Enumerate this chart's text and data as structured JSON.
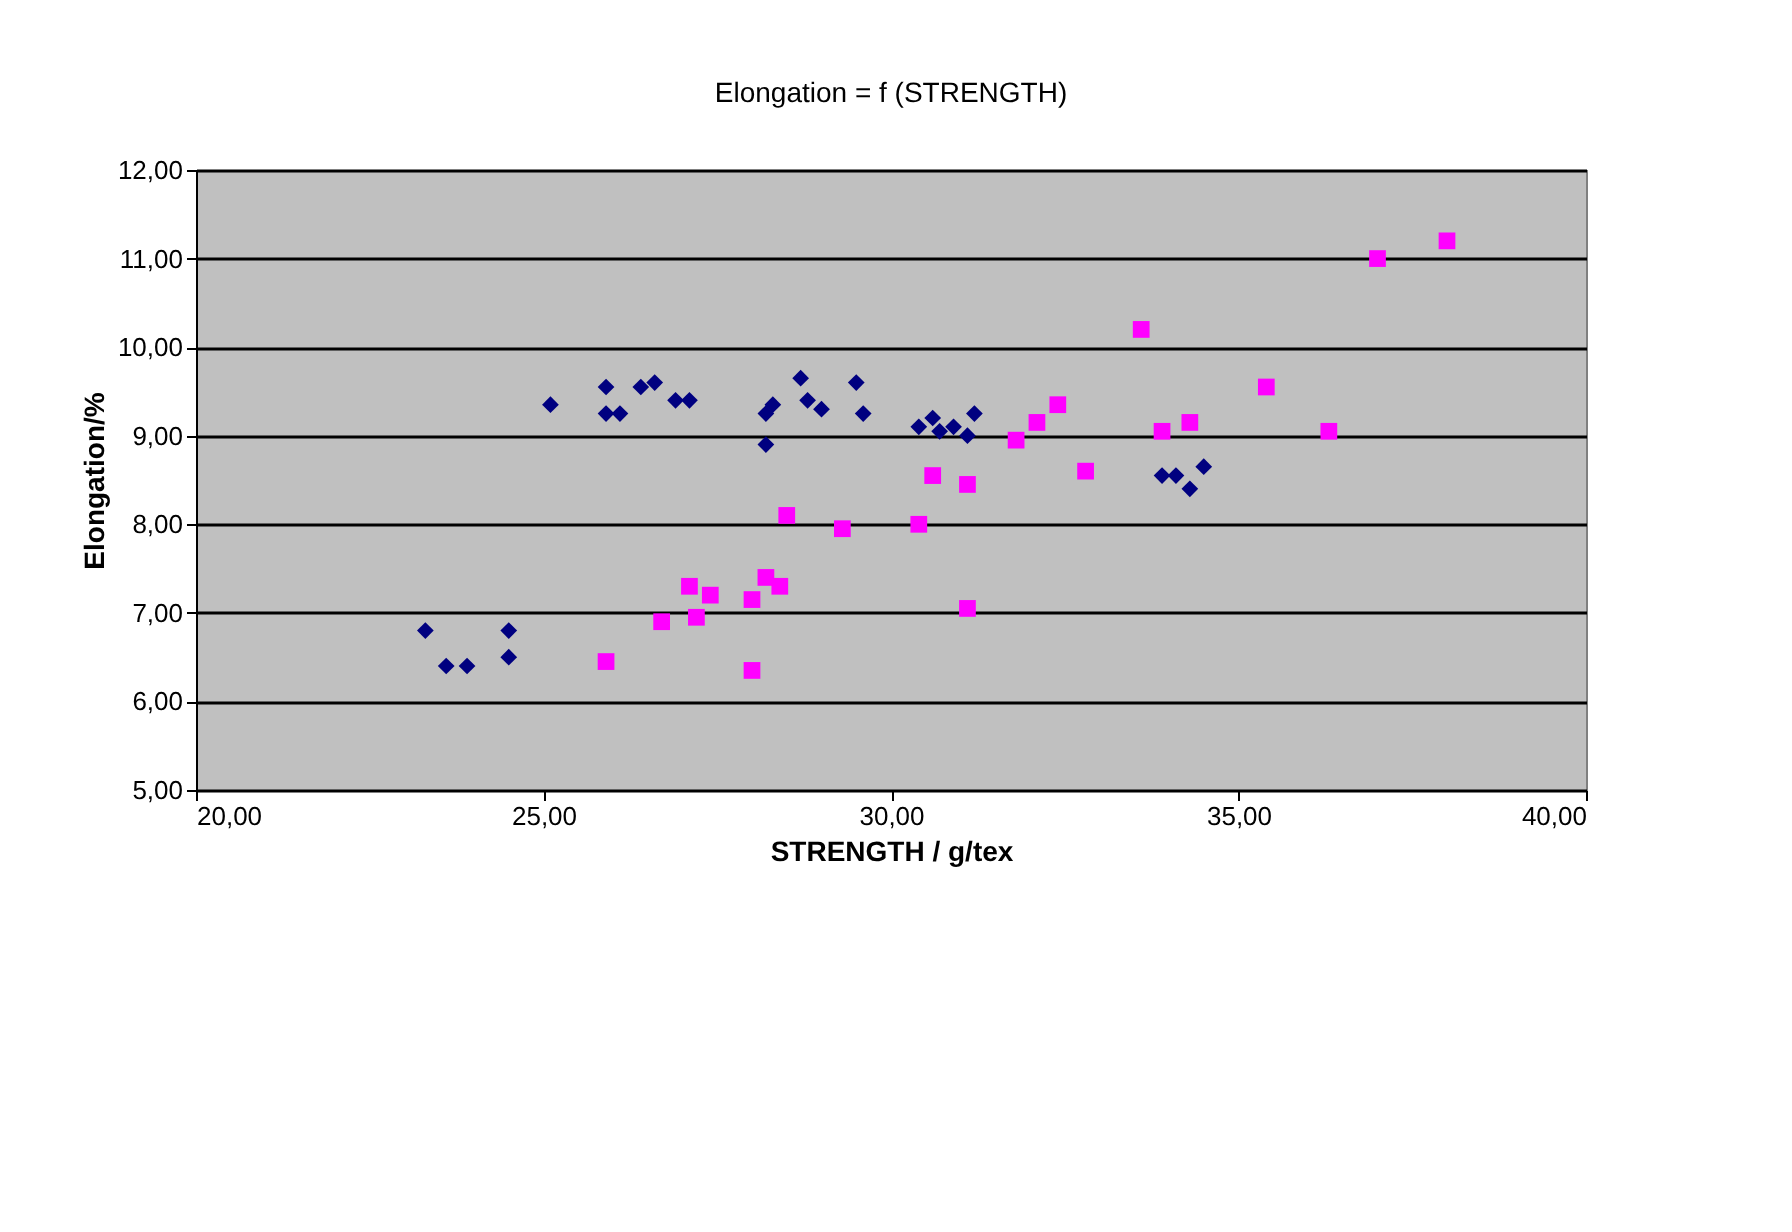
{
  "chart_data": {
    "type": "scatter",
    "title": "Elongation = f (STRENGTH)",
    "xlabel": "STRENGTH / g/tex",
    "ylabel": "Elongation/%",
    "xlim": [
      20,
      40
    ],
    "ylim": [
      5,
      12
    ],
    "xticks": [
      {
        "value": 20,
        "label": "20,00"
      },
      {
        "value": 25,
        "label": "25,00"
      },
      {
        "value": 30,
        "label": "30,00"
      },
      {
        "value": 35,
        "label": "35,00"
      },
      {
        "value": 40,
        "label": "40,00"
      }
    ],
    "yticks": [
      {
        "value": 5,
        "label": "5,00"
      },
      {
        "value": 6,
        "label": "6,00"
      },
      {
        "value": 7,
        "label": "7,00"
      },
      {
        "value": 8,
        "label": "8,00"
      },
      {
        "value": 9,
        "label": "9,00"
      },
      {
        "value": 10,
        "label": "10,00"
      },
      {
        "value": 11,
        "label": "11,00"
      },
      {
        "value": 12,
        "label": "12,00"
      }
    ],
    "grid": "y",
    "series": [
      {
        "color": "#000080",
        "marker": "diamond",
        "x": [
          23.3,
          23.6,
          23.9,
          24.5,
          24.5,
          25.1,
          25.9,
          25.9,
          26.1,
          26.4,
          26.6,
          26.9,
          27.1,
          28.2,
          28.3,
          28.2,
          28.7,
          28.8,
          29.0,
          29.5,
          29.6,
          30.4,
          30.6,
          30.7,
          30.9,
          31.1,
          31.2,
          33.9,
          34.1,
          34.3,
          34.5
        ],
        "values": [
          6.8,
          6.4,
          6.4,
          6.8,
          6.5,
          9.35,
          9.55,
          9.25,
          9.25,
          9.55,
          9.6,
          9.4,
          9.4,
          9.25,
          9.35,
          8.9,
          9.65,
          9.4,
          9.3,
          9.6,
          9.25,
          9.1,
          9.2,
          9.05,
          9.1,
          9.0,
          9.25,
          8.55,
          8.55,
          8.4,
          8.65
        ]
      },
      {
        "color": "#ff00ff",
        "marker": "square",
        "x": [
          25.9,
          26.7,
          27.1,
          27.2,
          27.4,
          28.0,
          28.0,
          28.2,
          28.4,
          28.5,
          29.3,
          30.6,
          30.4,
          31.1,
          31.1,
          31.8,
          32.1,
          32.4,
          32.8,
          33.6,
          33.9,
          34.3,
          35.4,
          36.3,
          37.0,
          38.0
        ],
        "values": [
          6.45,
          6.9,
          7.3,
          6.95,
          7.2,
          6.35,
          7.15,
          7.4,
          7.3,
          8.1,
          7.95,
          8.55,
          8.0,
          8.45,
          7.05,
          8.95,
          9.15,
          9.35,
          8.6,
          10.2,
          9.05,
          9.15,
          9.55,
          9.05,
          11.0,
          11.2
        ]
      }
    ]
  }
}
